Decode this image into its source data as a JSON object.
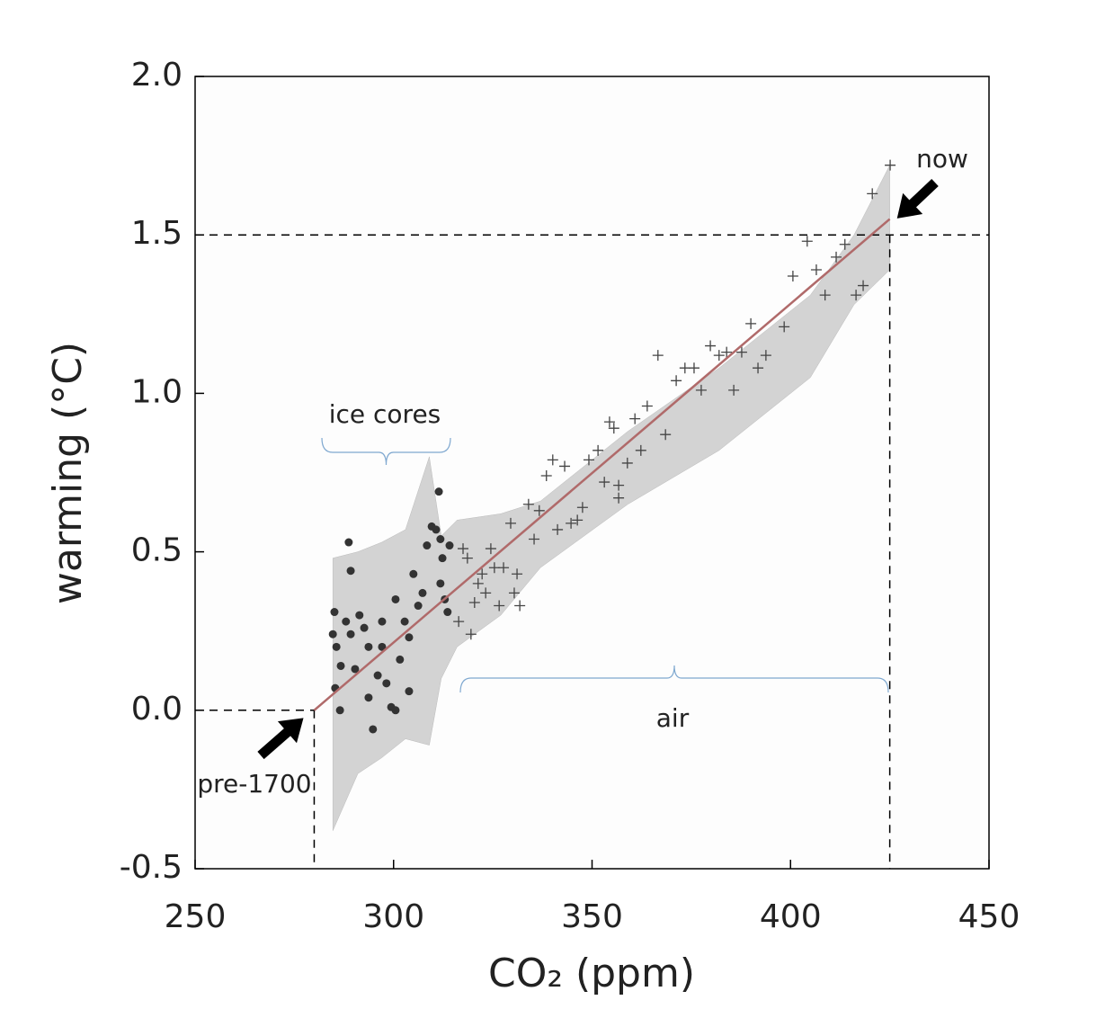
{
  "chart_data": {
    "type": "scatter",
    "x_label": "CO₂ (ppm)",
    "y_label": "warming (°C)",
    "xlim": [
      250,
      450
    ],
    "ylim": [
      -0.5,
      2.0
    ],
    "xticks": [
      250,
      300,
      350,
      400,
      450
    ],
    "yticks": [
      -0.5,
      {
        "value": 0,
        "label": "0.0"
      },
      0.5,
      {
        "value": 1,
        "label": "1.0"
      },
      1.5,
      {
        "value": 2,
        "label": "2.0"
      }
    ],
    "annotations": [
      "ice cores",
      "air",
      "now",
      "pre-1700"
    ],
    "band": {
      "color": "#d3d3d3",
      "x": [
        284.7,
        291,
        297,
        303,
        309,
        312,
        316,
        327,
        337,
        359,
        382,
        405,
        416,
        425
      ],
      "upper": [
        0.48,
        0.5,
        0.53,
        0.57,
        0.8,
        0.55,
        0.6,
        0.62,
        0.66,
        0.88,
        1.08,
        1.31,
        1.5,
        1.72
      ],
      "lower": [
        -0.38,
        -0.2,
        -0.15,
        -0.09,
        -0.11,
        0.1,
        0.2,
        0.3,
        0.45,
        0.65,
        0.82,
        1.05,
        1.28,
        1.39
      ]
    },
    "fit": {
      "color": "#b06a6a",
      "x": [
        280,
        425
      ],
      "values": [
        0,
        1.55
      ]
    },
    "reference_lines": {
      "x": [
        280,
        425
      ],
      "y": [
        0,
        1.5
      ]
    },
    "series": [
      {
        "marker": "circle",
        "color": "#333333",
        "x": [
          288.7,
          289.2,
          284.7,
          285.1,
          285.6,
          285.3,
          286.5,
          288,
          289.2,
          290.3,
          291.4,
          292.6,
          293.7,
          293.7,
          294.8,
          296,
          297.1,
          298.2,
          299.4,
          300.5,
          301.6,
          302.8,
          303.9,
          305,
          306.2,
          307.3,
          308.4,
          309.6,
          310.7,
          311.4,
          311.8,
          312.3,
          311.8,
          312.9,
          314.1,
          313.6,
          303.9,
          300.5,
          297.1,
          286.7
        ],
        "values": [
          0.53,
          0.44,
          0.24,
          0.31,
          0.2,
          0.07,
          0.0,
          0.28,
          0.24,
          0.13,
          0.3,
          0.26,
          0.2,
          0.04,
          -0.06,
          0.11,
          0.28,
          0.085,
          0.01,
          0.35,
          0.16,
          0.28,
          0.23,
          0.43,
          0.33,
          0.37,
          0.52,
          0.58,
          0.57,
          0.69,
          0.54,
          0.48,
          0.4,
          0.35,
          0.52,
          0.31,
          0.06,
          0.0,
          0.2,
          0.14
        ]
      },
      {
        "marker": "cross",
        "color": "#444444",
        "x": [
          316.4,
          317.5,
          318.6,
          319.5,
          320.4,
          321.3,
          322.3,
          323.2,
          324.5,
          325.4,
          326.6,
          327.7,
          329.5,
          330.4,
          331.1,
          331.8,
          334.0,
          335.4,
          336.7,
          338.5,
          340.1,
          341.3,
          343.1,
          344.7,
          346.3,
          347.6,
          349.2,
          351.5,
          353.1,
          354.4,
          355.5,
          356.7,
          356.7,
          358.9,
          360.8,
          362.3,
          363.9,
          366.6,
          368.5,
          371.2,
          373.4,
          375.7,
          377.5,
          379.8,
          382,
          383.9,
          385.7,
          387.7,
          390,
          391.8,
          393.8,
          398.4,
          400.6,
          404.2,
          406.5,
          408.7,
          411.5,
          413.7,
          416.5,
          418.3,
          420.6,
          425.1
        ],
        "values": [
          0.28,
          0.51,
          0.48,
          0.24,
          0.34,
          0.4,
          0.43,
          0.37,
          0.51,
          0.45,
          0.33,
          0.45,
          0.59,
          0.37,
          0.43,
          0.33,
          0.65,
          0.54,
          0.63,
          0.74,
          0.79,
          0.57,
          0.77,
          0.59,
          0.6,
          0.64,
          0.79,
          0.82,
          0.72,
          0.91,
          0.89,
          0.71,
          0.67,
          0.78,
          0.92,
          0.82,
          0.96,
          1.12,
          0.87,
          1.04,
          1.08,
          1.08,
          1.01,
          1.15,
          1.12,
          1.13,
          1.01,
          1.13,
          1.22,
          1.08,
          1.12,
          1.21,
          1.37,
          1.48,
          1.39,
          1.31,
          1.43,
          1.47,
          1.31,
          1.34,
          1.63,
          1.72
        ]
      }
    ]
  }
}
